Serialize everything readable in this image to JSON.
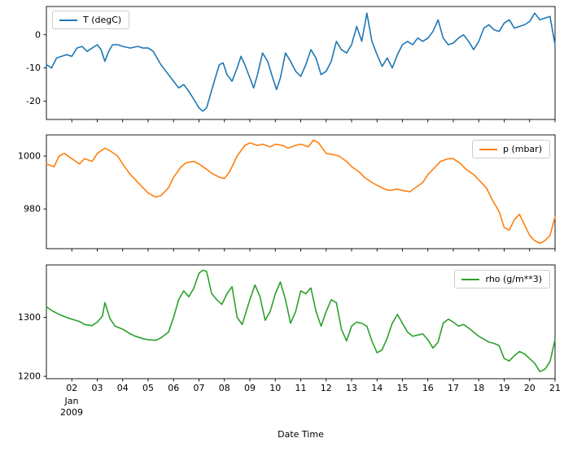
{
  "figure": {
    "background": "#ffffff",
    "xlabel": "Date Time",
    "x_offset": {
      "line1": "Jan",
      "line2": "2009"
    }
  },
  "x_axis": {
    "xlim": [
      1,
      21
    ],
    "ticks": [
      2,
      3,
      4,
      5,
      6,
      7,
      8,
      9,
      10,
      11,
      12,
      13,
      14,
      15,
      16,
      17,
      18,
      19,
      20,
      21
    ],
    "tick_labels": [
      "02",
      "03",
      "04",
      "05",
      "06",
      "07",
      "08",
      "09",
      "10",
      "11",
      "12",
      "13",
      "14",
      "15",
      "16",
      "17",
      "18",
      "19",
      "20",
      "21"
    ]
  },
  "chart_data": [
    {
      "type": "line",
      "title": "",
      "ylabel": "",
      "ylim": [
        -25.5,
        8.5
      ],
      "yticks": [
        0,
        -10,
        -20
      ],
      "grid": false,
      "legend": {
        "label": "T (degC)",
        "position": "upper-left"
      },
      "series": [
        {
          "name": "T (degC)",
          "color": "#1f77b4",
          "x": [
            1.0,
            1.2,
            1.4,
            1.6,
            1.8,
            2.0,
            2.2,
            2.4,
            2.6,
            2.8,
            3.0,
            3.15,
            3.3,
            3.45,
            3.6,
            3.8,
            4.0,
            4.3,
            4.6,
            4.8,
            5.0,
            5.2,
            5.5,
            5.8,
            6.0,
            6.2,
            6.4,
            6.6,
            6.8,
            7.0,
            7.15,
            7.3,
            7.45,
            7.6,
            7.8,
            7.95,
            8.1,
            8.3,
            8.5,
            8.65,
            8.8,
            9.0,
            9.15,
            9.3,
            9.5,
            9.7,
            9.9,
            10.05,
            10.2,
            10.4,
            10.6,
            10.8,
            11.0,
            11.2,
            11.4,
            11.6,
            11.8,
            12.0,
            12.2,
            12.4,
            12.6,
            12.8,
            13.0,
            13.2,
            13.4,
            13.6,
            13.8,
            14.0,
            14.2,
            14.4,
            14.6,
            14.8,
            15.0,
            15.2,
            15.4,
            15.6,
            15.8,
            16.0,
            16.2,
            16.4,
            16.6,
            16.8,
            17.0,
            17.2,
            17.4,
            17.6,
            17.8,
            18.0,
            18.2,
            18.4,
            18.6,
            18.8,
            19.0,
            19.2,
            19.4,
            19.6,
            19.8,
            20.0,
            20.2,
            20.4,
            20.6,
            20.8,
            21.0
          ],
          "y": [
            -9,
            -10,
            -7,
            -6.5,
            -6,
            -6.5,
            -4,
            -3.5,
            -5,
            -4,
            -3,
            -4.5,
            -8,
            -5,
            -3,
            -3,
            -3.5,
            -4,
            -3.5,
            -4,
            -4,
            -5,
            -9,
            -12,
            -14,
            -16,
            -15,
            -17,
            -19.5,
            -22,
            -23,
            -22,
            -18,
            -14,
            -9,
            -8.5,
            -12,
            -14,
            -10,
            -6.5,
            -9,
            -13,
            -16,
            -12,
            -5.5,
            -8,
            -13,
            -16.5,
            -13,
            -5.5,
            -8,
            -11,
            -12.5,
            -9,
            -4.5,
            -7,
            -12,
            -11,
            -8,
            -2,
            -4.5,
            -5.5,
            -3,
            2.5,
            -2,
            6.5,
            -2,
            -6,
            -9.5,
            -7,
            -10,
            -6,
            -3,
            -2,
            -3,
            -1,
            -2,
            -1,
            1,
            4.5,
            -1,
            -3,
            -2.5,
            -1,
            0,
            -2,
            -4.5,
            -2,
            2,
            3,
            1.5,
            1,
            3.5,
            4.5,
            2,
            2.5,
            3,
            4,
            6.5,
            4.5,
            5,
            5.5,
            -3
          ]
        }
      ]
    },
    {
      "type": "line",
      "title": "",
      "ylabel": "",
      "ylim": [
        965,
        1008
      ],
      "yticks": [
        1000,
        980
      ],
      "grid": false,
      "legend": {
        "label": "p (mbar)",
        "position": "upper-right"
      },
      "series": [
        {
          "name": "p (mbar)",
          "color": "#ff7f0e",
          "x": [
            1.0,
            1.3,
            1.5,
            1.7,
            2.0,
            2.3,
            2.5,
            2.8,
            3.0,
            3.3,
            3.5,
            3.8,
            4.0,
            4.3,
            4.6,
            5.0,
            5.3,
            5.5,
            5.8,
            6.0,
            6.3,
            6.5,
            6.8,
            7.0,
            7.3,
            7.5,
            7.8,
            8.0,
            8.2,
            8.5,
            8.8,
            9.0,
            9.3,
            9.5,
            9.8,
            10.0,
            10.3,
            10.5,
            10.8,
            11.0,
            11.3,
            11.5,
            11.7,
            12.0,
            12.3,
            12.5,
            12.8,
            13.0,
            13.3,
            13.5,
            13.8,
            14.0,
            14.3,
            14.5,
            14.8,
            15.0,
            15.3,
            15.5,
            15.8,
            16.0,
            16.3,
            16.5,
            16.8,
            17.0,
            17.3,
            17.5,
            17.8,
            18.0,
            18.3,
            18.5,
            18.8,
            19.0,
            19.2,
            19.4,
            19.6,
            19.8,
            20.0,
            20.2,
            20.4,
            20.6,
            20.8,
            21.0
          ],
          "y": [
            997,
            996,
            1000,
            1001,
            999,
            997,
            999,
            998,
            1001,
            1003,
            1002,
            1000,
            997,
            993,
            990,
            986,
            984.5,
            985,
            988,
            992,
            996,
            997.5,
            998,
            997,
            995,
            993.5,
            992,
            991.5,
            994,
            1000,
            1004,
            1005,
            1004,
            1004.5,
            1003.5,
            1004.5,
            1004,
            1003,
            1004,
            1004.5,
            1003.5,
            1006,
            1005,
            1001,
            1000.5,
            1000,
            998,
            996,
            994,
            992,
            990,
            989,
            987.5,
            987,
            987.5,
            987,
            986.5,
            988,
            990,
            993,
            996,
            998,
            999,
            999,
            997,
            995,
            993,
            991,
            988,
            984,
            979,
            973,
            972,
            976,
            978,
            974,
            970,
            968,
            967,
            968,
            970,
            977
          ]
        }
      ]
    },
    {
      "type": "line",
      "title": "",
      "ylabel": "",
      "ylim": [
        1196,
        1389
      ],
      "yticks": [
        1300,
        1200
      ],
      "grid": false,
      "legend": {
        "label": "rho (g/m**3)",
        "position": "upper-right"
      },
      "series": [
        {
          "name": "rho (g/m**3)",
          "color": "#2ca02c",
          "x": [
            1.0,
            1.2,
            1.5,
            1.8,
            2.0,
            2.3,
            2.5,
            2.8,
            3.0,
            3.2,
            3.3,
            3.5,
            3.7,
            4.0,
            4.3,
            4.5,
            4.8,
            5.0,
            5.3,
            5.5,
            5.8,
            6.0,
            6.2,
            6.4,
            6.6,
            6.8,
            7.0,
            7.15,
            7.3,
            7.5,
            7.7,
            7.9,
            8.1,
            8.3,
            8.5,
            8.7,
            9.0,
            9.2,
            9.4,
            9.6,
            9.8,
            10.0,
            10.2,
            10.4,
            10.6,
            10.8,
            11.0,
            11.2,
            11.4,
            11.6,
            11.8,
            12.0,
            12.2,
            12.4,
            12.6,
            12.8,
            13.0,
            13.2,
            13.4,
            13.6,
            13.8,
            14.0,
            14.2,
            14.4,
            14.6,
            14.8,
            15.0,
            15.2,
            15.4,
            15.6,
            15.8,
            16.0,
            16.2,
            16.4,
            16.6,
            16.8,
            17.0,
            17.2,
            17.4,
            17.6,
            17.8,
            18.0,
            18.2,
            18.4,
            18.6,
            18.8,
            19.0,
            19.2,
            19.4,
            19.6,
            19.8,
            20.0,
            20.2,
            20.4,
            20.6,
            20.8,
            21.0
          ],
          "y": [
            1318,
            1312,
            1305,
            1300,
            1297,
            1293,
            1288,
            1286,
            1292,
            1302,
            1325,
            1298,
            1285,
            1280,
            1272,
            1268,
            1264,
            1262,
            1261,
            1265,
            1275,
            1300,
            1330,
            1345,
            1335,
            1350,
            1375,
            1380,
            1378,
            1340,
            1330,
            1322,
            1340,
            1352,
            1300,
            1288,
            1330,
            1355,
            1335,
            1295,
            1310,
            1340,
            1360,
            1330,
            1290,
            1310,
            1345,
            1340,
            1350,
            1310,
            1285,
            1310,
            1330,
            1325,
            1280,
            1260,
            1285,
            1292,
            1290,
            1285,
            1260,
            1240,
            1245,
            1265,
            1290,
            1305,
            1290,
            1275,
            1268,
            1270,
            1272,
            1262,
            1248,
            1258,
            1290,
            1297,
            1292,
            1285,
            1288,
            1282,
            1275,
            1268,
            1263,
            1258,
            1256,
            1252,
            1230,
            1226,
            1235,
            1242,
            1238,
            1230,
            1222,
            1208,
            1212,
            1225,
            1262
          ]
        }
      ]
    }
  ]
}
